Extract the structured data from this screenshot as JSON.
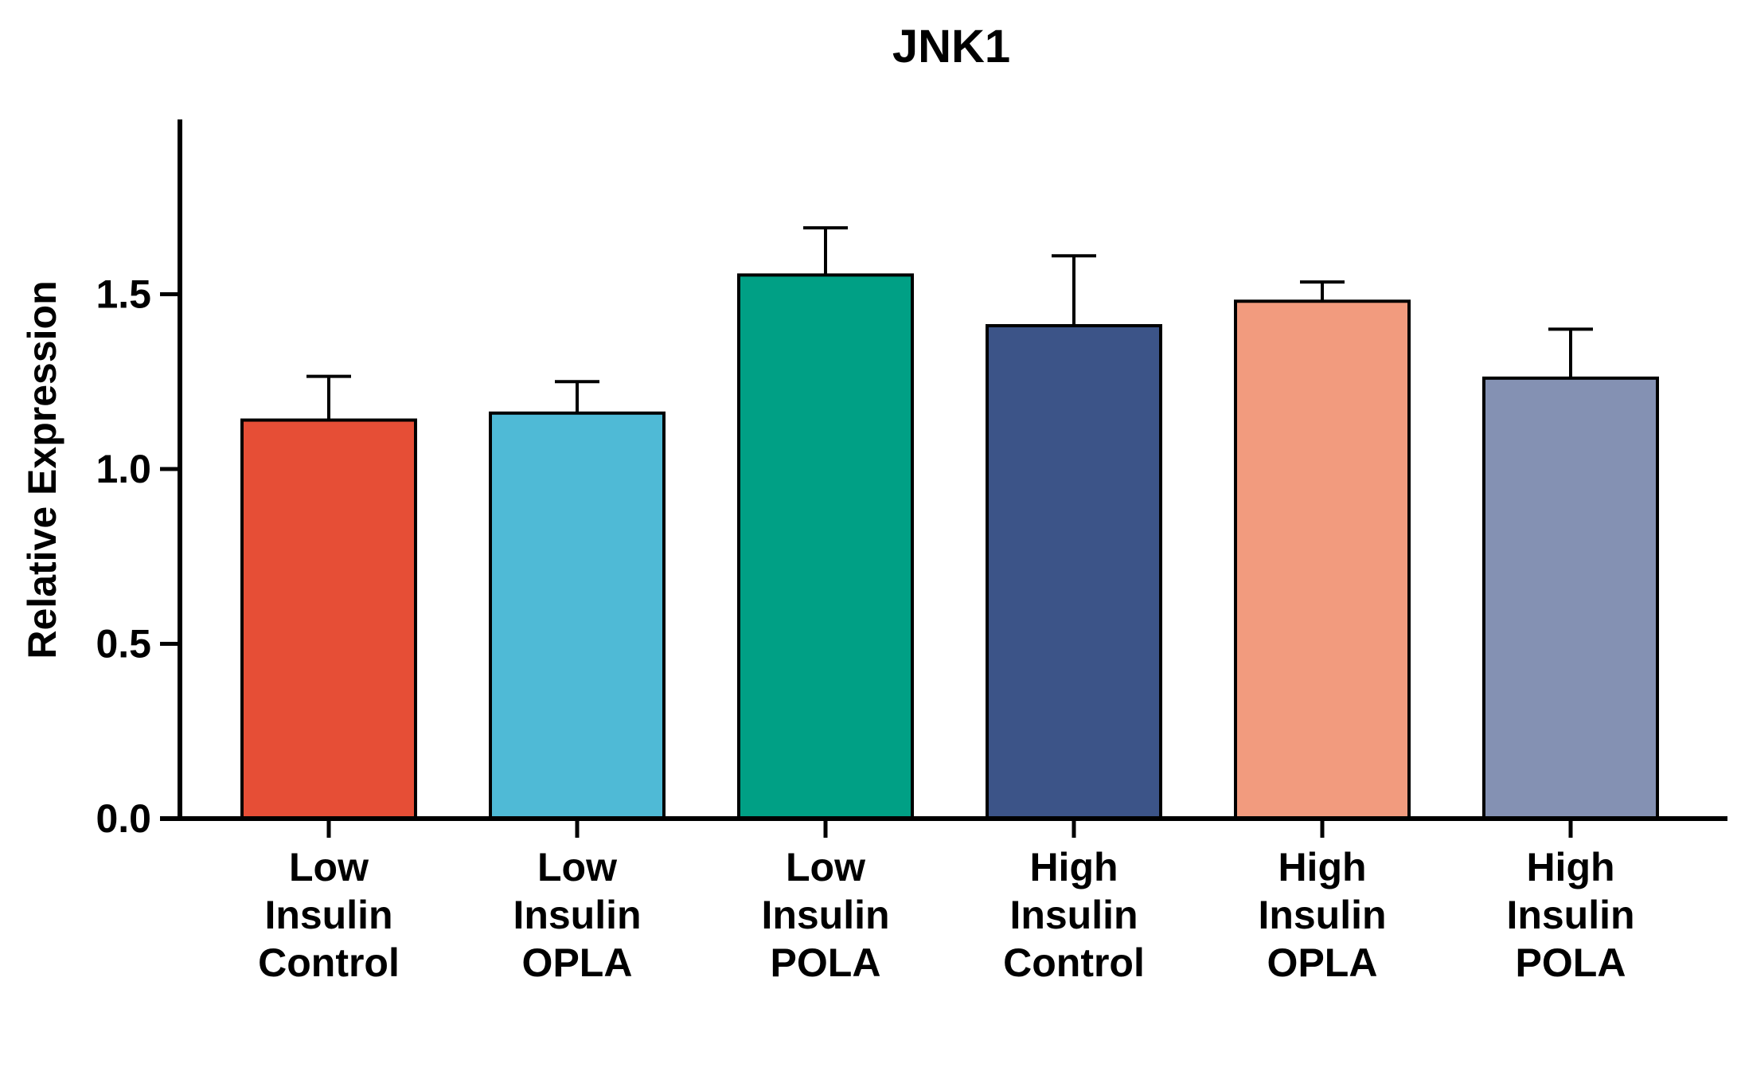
{
  "chart_data": {
    "type": "bar",
    "title": "JNK1",
    "xlabel": "",
    "ylabel": "Relative Expression",
    "ylim": [
      0,
      2.0
    ],
    "yticks": [
      "0.0",
      "0.5",
      "1.0",
      "1.5"
    ],
    "ytick_values": [
      0,
      0.5,
      1.0,
      1.5
    ],
    "grid": false,
    "categories": [
      [
        "Low",
        "Insulin",
        "Control"
      ],
      [
        "Low",
        "Insulin",
        "OPLA"
      ],
      [
        "Low",
        "Insulin",
        "POLA"
      ],
      [
        "High",
        "Insulin",
        "Control"
      ],
      [
        "High",
        "Insulin",
        "OPLA"
      ],
      [
        "High",
        "Insulin",
        "POLA"
      ]
    ],
    "values": [
      1.14,
      1.16,
      1.555,
      1.41,
      1.48,
      1.26
    ],
    "errors": [
      0.125,
      0.09,
      0.135,
      0.2,
      0.055,
      0.14
    ],
    "colors": [
      "#E64E36",
      "#4FBAD6",
      "#00A085",
      "#3C5488",
      "#F29B7E",
      "#8491B3"
    ]
  }
}
